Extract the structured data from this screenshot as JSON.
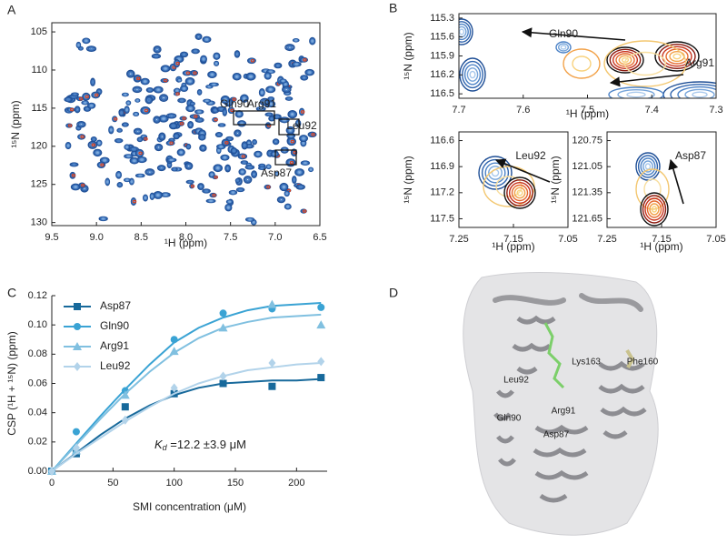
{
  "chart_data": [
    {
      "type": "spectrum",
      "panel": "A",
      "xlabel": "¹H (ppm)",
      "ylabel": "¹⁵N (ppm)",
      "xlim": [
        9.5,
        6.5
      ],
      "xticks": [
        9.5,
        {
          "value": 9,
          "label": "9.0"
        },
        8.5,
        {
          "value": 8,
          "label": "8.0"
        },
        7.5,
        {
          "value": 7,
          "label": "7.0"
        },
        6.5
      ],
      "ylim": [
        130.4,
        103.8
      ],
      "yticks": [
        105,
        110,
        115,
        120,
        125,
        130
      ],
      "annotations": [
        "Gln90",
        "Arg91",
        "Leu92",
        "Asp87"
      ]
    },
    {
      "type": "spectrum",
      "panel": "B",
      "xlabel": "¹H (ppm)",
      "ylabel": "¹⁵N (ppm)",
      "xlim": [
        7.7,
        7.3
      ],
      "xticks": [
        7.7,
        7.6,
        7.5,
        7.4,
        7.3
      ],
      "ylim": [
        116.57,
        115.23
      ],
      "yticks": [
        115.3,
        115.6,
        115.9,
        116.2,
        116.5
      ],
      "annotations": [
        "Gln90",
        "Arg91"
      ]
    },
    {
      "type": "spectrum",
      "xlabel": "¹H (ppm)",
      "ylabel": "¹⁵N (ppm)",
      "xlim": [
        7.25,
        7.05
      ],
      "xticks": [
        7.25,
        7.15,
        7.05
      ],
      "ylim": [
        117.6,
        116.5
      ],
      "yticks": [
        116.6,
        116.9,
        117.2,
        117.5
      ],
      "annotations": [
        "Leu92"
      ]
    },
    {
      "type": "spectrum",
      "xlabel": "¹H (ppm)",
      "ylabel": "¹⁵N (ppm)",
      "xlim": [
        7.25,
        7.05
      ],
      "xticks": [
        7.25,
        7.15,
        7.05
      ],
      "ylim": [
        121.75,
        120.65
      ],
      "yticks": [
        120.75,
        121.05,
        121.35,
        121.65
      ],
      "annotations": [
        "Asp87"
      ]
    },
    {
      "type": "scatter",
      "panel": "C",
      "xlabel": "SMI concentration (μM)",
      "ylabel": "CSP (¹H + ¹⁵N) (ppm)",
      "xlim": [
        0,
        225
      ],
      "xticks": [
        0,
        50,
        100,
        150,
        200
      ],
      "ylim": [
        0,
        0.12
      ],
      "yticks": [
        {
          "value": 0,
          "label": "0.00"
        },
        0.02,
        0.04,
        0.06,
        0.08,
        {
          "value": 0.1,
          "label": "0.10"
        },
        0.12
      ],
      "x": [
        0,
        20,
        60,
        100,
        140,
        180,
        220
      ],
      "fit_x": [
        0,
        20,
        40,
        60,
        80,
        100,
        120,
        140,
        160,
        180,
        200,
        220
      ],
      "series": [
        {
          "name": "Asp87",
          "color": "#17699b",
          "marker": "square",
          "values": [
            0,
            0.012,
            0.044,
            0.053,
            0.06,
            0.058,
            0.064
          ],
          "fit_values": [
            0,
            0.0125,
            0.025,
            0.036,
            0.045,
            0.052,
            0.057,
            0.06,
            0.061,
            0.062,
            0.062,
            0.063
          ]
        },
        {
          "name": "Gln90",
          "color": "#3aa3d4",
          "marker": "circle",
          "values": [
            0,
            0.027,
            0.055,
            0.09,
            0.108,
            0.111,
            0.112
          ],
          "fit_values": [
            0,
            0.019,
            0.038,
            0.056,
            0.073,
            0.088,
            0.098,
            0.105,
            0.11,
            0.113,
            0.114,
            0.115
          ]
        },
        {
          "name": "Arg91",
          "color": "#80c0e0",
          "marker": "triangle",
          "values": [
            0,
            0.014,
            0.052,
            0.082,
            0.098,
            0.114,
            0.1
          ],
          "fit_values": [
            0,
            0.018,
            0.036,
            0.053,
            0.068,
            0.081,
            0.091,
            0.098,
            0.102,
            0.105,
            0.106,
            0.107
          ]
        },
        {
          "name": "Leu92",
          "color": "#b2d3ea",
          "marker": "diamond",
          "values": [
            0,
            0.016,
            0.035,
            0.057,
            0.065,
            0.074,
            0.075
          ],
          "fit_values": [
            0,
            0.012,
            0.023,
            0.034,
            0.044,
            0.053,
            0.06,
            0.065,
            0.069,
            0.071,
            0.073,
            0.074
          ]
        }
      ],
      "annotation": [
        "K",
        "d",
        " =12.2 ±3.9 μM"
      ]
    }
  ],
  "structure": {
    "panel": "D",
    "labels": [
      "Lys163",
      "Phe160",
      "Leu92",
      "Arg91",
      "Gln90",
      "Asp87"
    ]
  }
}
